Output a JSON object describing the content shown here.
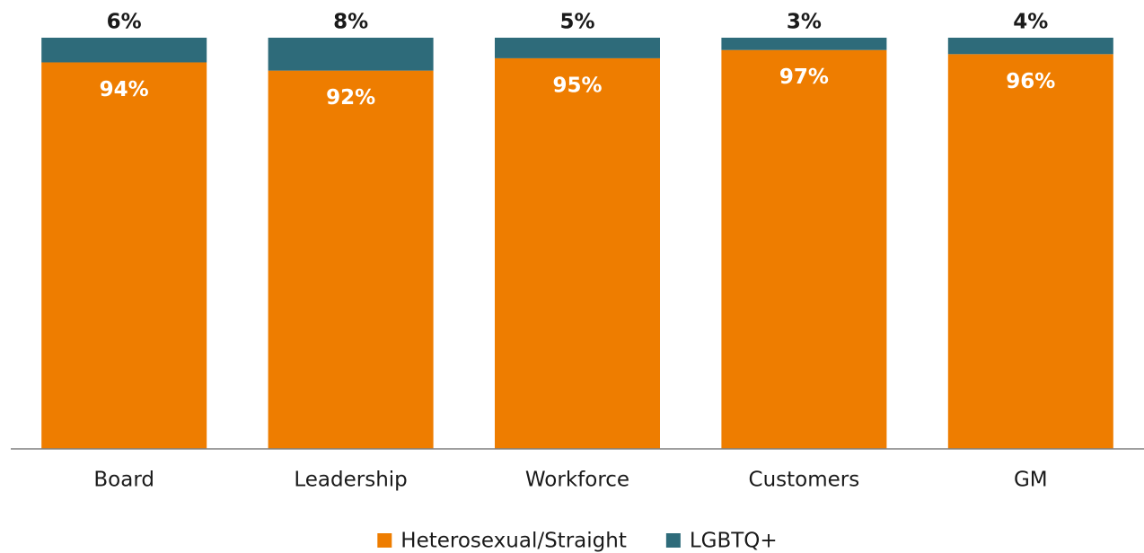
{
  "chart_data": {
    "type": "stacked_bar",
    "categories": [
      "Board",
      "Leadership",
      "Workforce",
      "Customers",
      "GM"
    ],
    "series": [
      {
        "name": "Heterosexual/Straight",
        "color": "#ee7d00",
        "values": [
          94,
          92,
          95,
          97,
          96
        ],
        "value_labels": [
          "94%",
          "92%",
          "95%",
          "97%",
          "96%"
        ]
      },
      {
        "name": "LGBTQ+",
        "color": "#2e6b7a",
        "values": [
          6,
          8,
          5,
          3,
          4
        ],
        "value_labels": [
          "6%",
          "8%",
          "5%",
          "3%",
          "4%"
        ]
      }
    ],
    "ylim": [
      0,
      100
    ],
    "legend": "bottom"
  }
}
